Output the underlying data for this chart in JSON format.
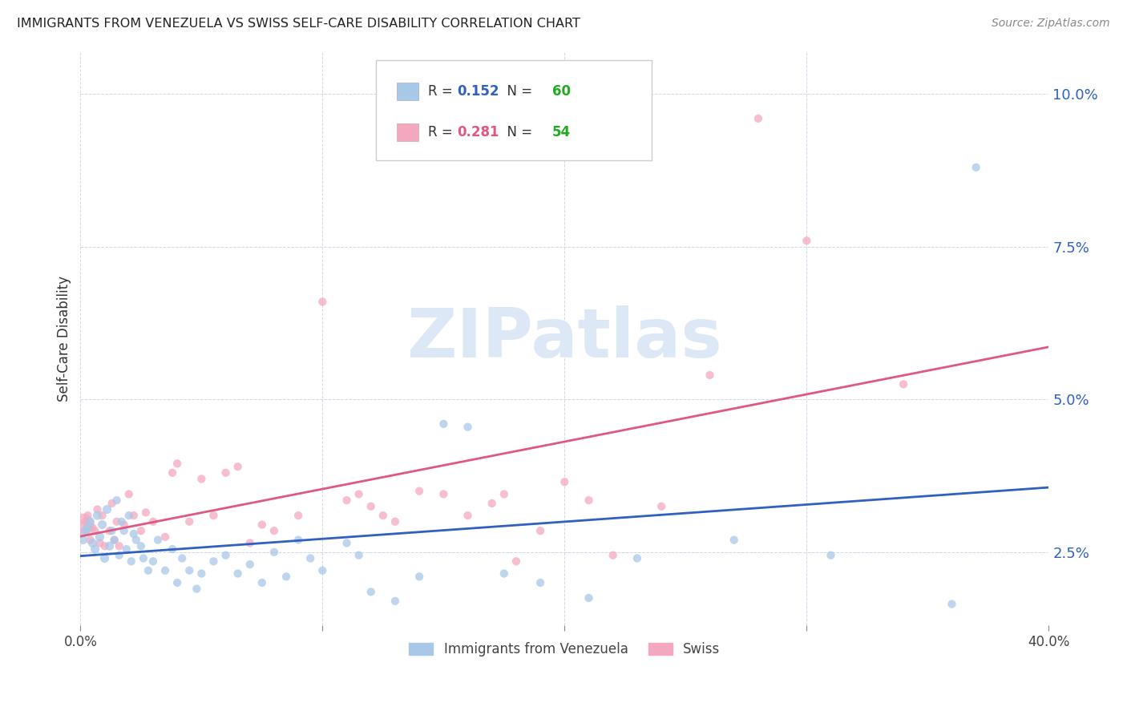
{
  "title": "IMMIGRANTS FROM VENEZUELA VS SWISS SELF-CARE DISABILITY CORRELATION CHART",
  "source": "Source: ZipAtlas.com",
  "ylabel": "Self-Care Disability",
  "yticks": [
    0.025,
    0.05,
    0.075,
    0.1
  ],
  "ytick_labels": [
    "2.5%",
    "5.0%",
    "7.5%",
    "10.0%"
  ],
  "xmin": 0.0,
  "xmax": 0.4,
  "ymin": 0.013,
  "ymax": 0.107,
  "blue_color": "#a8c8e8",
  "pink_color": "#f4a8c0",
  "blue_line_color": "#3060c0",
  "pink_line_color": "#e05880",
  "blue_R": 0.152,
  "blue_N": 60,
  "pink_R": 0.281,
  "pink_N": 54,
  "watermark_text": "ZIPatlas",
  "blue_scatter": [
    [
      0.001,
      0.027
    ],
    [
      0.002,
      0.0285
    ],
    [
      0.003,
      0.029
    ],
    [
      0.004,
      0.03
    ],
    [
      0.005,
      0.0265
    ],
    [
      0.006,
      0.0255
    ],
    [
      0.007,
      0.031
    ],
    [
      0.008,
      0.0275
    ],
    [
      0.009,
      0.0295
    ],
    [
      0.01,
      0.024
    ],
    [
      0.011,
      0.032
    ],
    [
      0.012,
      0.026
    ],
    [
      0.013,
      0.0285
    ],
    [
      0.014,
      0.027
    ],
    [
      0.015,
      0.0335
    ],
    [
      0.016,
      0.0245
    ],
    [
      0.017,
      0.03
    ],
    [
      0.018,
      0.0285
    ],
    [
      0.019,
      0.0255
    ],
    [
      0.02,
      0.031
    ],
    [
      0.021,
      0.0235
    ],
    [
      0.022,
      0.028
    ],
    [
      0.023,
      0.027
    ],
    [
      0.025,
      0.026
    ],
    [
      0.026,
      0.024
    ],
    [
      0.028,
      0.022
    ],
    [
      0.03,
      0.0235
    ],
    [
      0.032,
      0.027
    ],
    [
      0.035,
      0.022
    ],
    [
      0.038,
      0.0255
    ],
    [
      0.04,
      0.02
    ],
    [
      0.042,
      0.024
    ],
    [
      0.045,
      0.022
    ],
    [
      0.048,
      0.019
    ],
    [
      0.05,
      0.0215
    ],
    [
      0.055,
      0.0235
    ],
    [
      0.06,
      0.0245
    ],
    [
      0.065,
      0.0215
    ],
    [
      0.07,
      0.023
    ],
    [
      0.075,
      0.02
    ],
    [
      0.08,
      0.025
    ],
    [
      0.085,
      0.021
    ],
    [
      0.09,
      0.027
    ],
    [
      0.095,
      0.024
    ],
    [
      0.1,
      0.022
    ],
    [
      0.11,
      0.0265
    ],
    [
      0.115,
      0.0245
    ],
    [
      0.12,
      0.0185
    ],
    [
      0.13,
      0.017
    ],
    [
      0.14,
      0.021
    ],
    [
      0.15,
      0.046
    ],
    [
      0.16,
      0.0455
    ],
    [
      0.175,
      0.0215
    ],
    [
      0.19,
      0.02
    ],
    [
      0.21,
      0.0175
    ],
    [
      0.23,
      0.024
    ],
    [
      0.27,
      0.027
    ],
    [
      0.31,
      0.0245
    ],
    [
      0.36,
      0.0165
    ],
    [
      0.37,
      0.088
    ]
  ],
  "pink_scatter": [
    [
      0.001,
      0.0295
    ],
    [
      0.002,
      0.03
    ],
    [
      0.003,
      0.031
    ],
    [
      0.004,
      0.027
    ],
    [
      0.005,
      0.029
    ],
    [
      0.006,
      0.0285
    ],
    [
      0.007,
      0.032
    ],
    [
      0.008,
      0.0265
    ],
    [
      0.009,
      0.031
    ],
    [
      0.01,
      0.026
    ],
    [
      0.012,
      0.0285
    ],
    [
      0.013,
      0.033
    ],
    [
      0.014,
      0.027
    ],
    [
      0.015,
      0.03
    ],
    [
      0.016,
      0.026
    ],
    [
      0.018,
      0.0295
    ],
    [
      0.02,
      0.0345
    ],
    [
      0.022,
      0.031
    ],
    [
      0.025,
      0.0285
    ],
    [
      0.027,
      0.0315
    ],
    [
      0.03,
      0.03
    ],
    [
      0.035,
      0.0275
    ],
    [
      0.038,
      0.038
    ],
    [
      0.04,
      0.0395
    ],
    [
      0.045,
      0.03
    ],
    [
      0.05,
      0.037
    ],
    [
      0.055,
      0.031
    ],
    [
      0.06,
      0.038
    ],
    [
      0.065,
      0.039
    ],
    [
      0.07,
      0.0265
    ],
    [
      0.075,
      0.0295
    ],
    [
      0.08,
      0.0285
    ],
    [
      0.09,
      0.031
    ],
    [
      0.1,
      0.066
    ],
    [
      0.11,
      0.0335
    ],
    [
      0.115,
      0.0345
    ],
    [
      0.12,
      0.0325
    ],
    [
      0.125,
      0.031
    ],
    [
      0.13,
      0.03
    ],
    [
      0.14,
      0.035
    ],
    [
      0.15,
      0.0345
    ],
    [
      0.16,
      0.031
    ],
    [
      0.17,
      0.033
    ],
    [
      0.175,
      0.0345
    ],
    [
      0.18,
      0.0235
    ],
    [
      0.19,
      0.0285
    ],
    [
      0.2,
      0.0365
    ],
    [
      0.21,
      0.0335
    ],
    [
      0.22,
      0.0245
    ],
    [
      0.24,
      0.0325
    ],
    [
      0.26,
      0.054
    ],
    [
      0.28,
      0.096
    ],
    [
      0.3,
      0.076
    ],
    [
      0.34,
      0.0525
    ]
  ],
  "blue_sizes_uniform": 55,
  "pink_sizes_uniform": 55,
  "pink_large_idx": 0,
  "pink_large_size": 400
}
